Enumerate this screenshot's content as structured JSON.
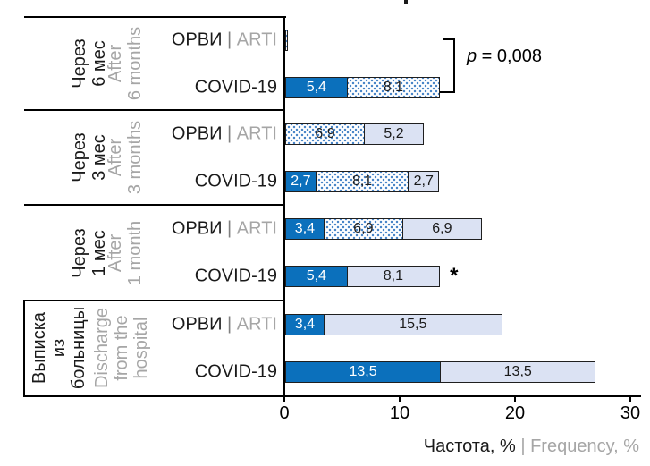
{
  "chart_data": {
    "type": "bar",
    "subtype": "horizontal-stacked-grouped",
    "x_axis": {
      "title_ru": "Частота, %",
      "title_sep": "|",
      "title_en": "Frequency, %",
      "ticks": [
        0,
        10,
        20,
        30
      ],
      "range": [
        0,
        31.6
      ],
      "grid": "off"
    },
    "row_label_sep": "|",
    "legend": "none-visible",
    "segment_styles": [
      "solid",
      "dotted",
      "light"
    ],
    "groups": [
      {
        "id": "after-6-months",
        "label_ru": "Через\n6 мес",
        "label_en": "After\n6 months",
        "rows": [
          {
            "id": "orvi-6m",
            "label_ru": "ОРВИ",
            "label_en": "ARTI",
            "segments": [
              {
                "style": "dotted",
                "value": 0.2,
                "label": ""
              }
            ]
          },
          {
            "id": "covid-6m",
            "label": "COVID-19",
            "segments": [
              {
                "style": "solid",
                "value": 5.4,
                "label": "5,4"
              },
              {
                "style": "dotted",
                "value": 8.1,
                "label": "8,1"
              }
            ]
          }
        ]
      },
      {
        "id": "after-3-months",
        "label_ru": "Через\n3 мес",
        "label_en": "After\n3 months",
        "rows": [
          {
            "id": "orvi-3m",
            "label_ru": "ОРВИ",
            "label_en": "ARTI",
            "segments": [
              {
                "style": "dotted",
                "value": 6.9,
                "label": "6,9"
              },
              {
                "style": "light",
                "value": 5.2,
                "label": "5,2"
              }
            ]
          },
          {
            "id": "covid-3m",
            "label": "COVID-19",
            "segments": [
              {
                "style": "solid",
                "value": 2.7,
                "label": "2,7"
              },
              {
                "style": "dotted",
                "value": 8.1,
                "label": "8,1"
              },
              {
                "style": "light",
                "value": 2.7,
                "label": "2,7"
              }
            ]
          }
        ]
      },
      {
        "id": "after-1-month",
        "label_ru": "Через\n1 мес",
        "label_en": "After\n1 month",
        "rows": [
          {
            "id": "orvi-1m",
            "label_ru": "ОРВИ",
            "label_en": "ARTI",
            "segments": [
              {
                "style": "solid",
                "value": 3.4,
                "label": "3,4"
              },
              {
                "style": "dotted",
                "value": 6.9,
                "label": "6,9"
              },
              {
                "style": "light",
                "value": 6.9,
                "label": "6,9"
              }
            ]
          },
          {
            "id": "covid-1m",
            "label": "COVID-19",
            "star": "*",
            "segments": [
              {
                "style": "solid",
                "value": 5.4,
                "label": "5,4"
              },
              {
                "style": "light",
                "value": 8.1,
                "label": "8,1"
              }
            ]
          }
        ]
      },
      {
        "id": "discharge",
        "label_ru": "Выписка\nиз\nбольницы",
        "label_en": "Discharge\nfrom the\nhospital",
        "rows": [
          {
            "id": "orvi-discharge",
            "label_ru": "ОРВИ",
            "label_en": "ARTI",
            "segments": [
              {
                "style": "solid",
                "value": 3.4,
                "label": "3,4"
              },
              {
                "style": "light",
                "value": 15.5,
                "label": "15,5"
              }
            ]
          },
          {
            "id": "covid-discharge",
            "label": "COVID-19",
            "segments": [
              {
                "style": "solid",
                "value": 13.5,
                "label": "13,5"
              },
              {
                "style": "light",
                "value": 13.5,
                "label": "13,5"
              }
            ]
          }
        ]
      }
    ],
    "annotations": {
      "p_stat": "p",
      "p_rest": " = 0,008",
      "p_bracket_group": "after-6-months",
      "star_group": "after-1-month"
    },
    "colors": {
      "solid_bar": "#0b70bc",
      "dotted_dot": "#4a86c8",
      "light_bar": "#dbe2f3",
      "bar_border": "#1f1f1f",
      "gray_text": "#a6a6a6",
      "black_text": "#1a1a1a"
    }
  }
}
